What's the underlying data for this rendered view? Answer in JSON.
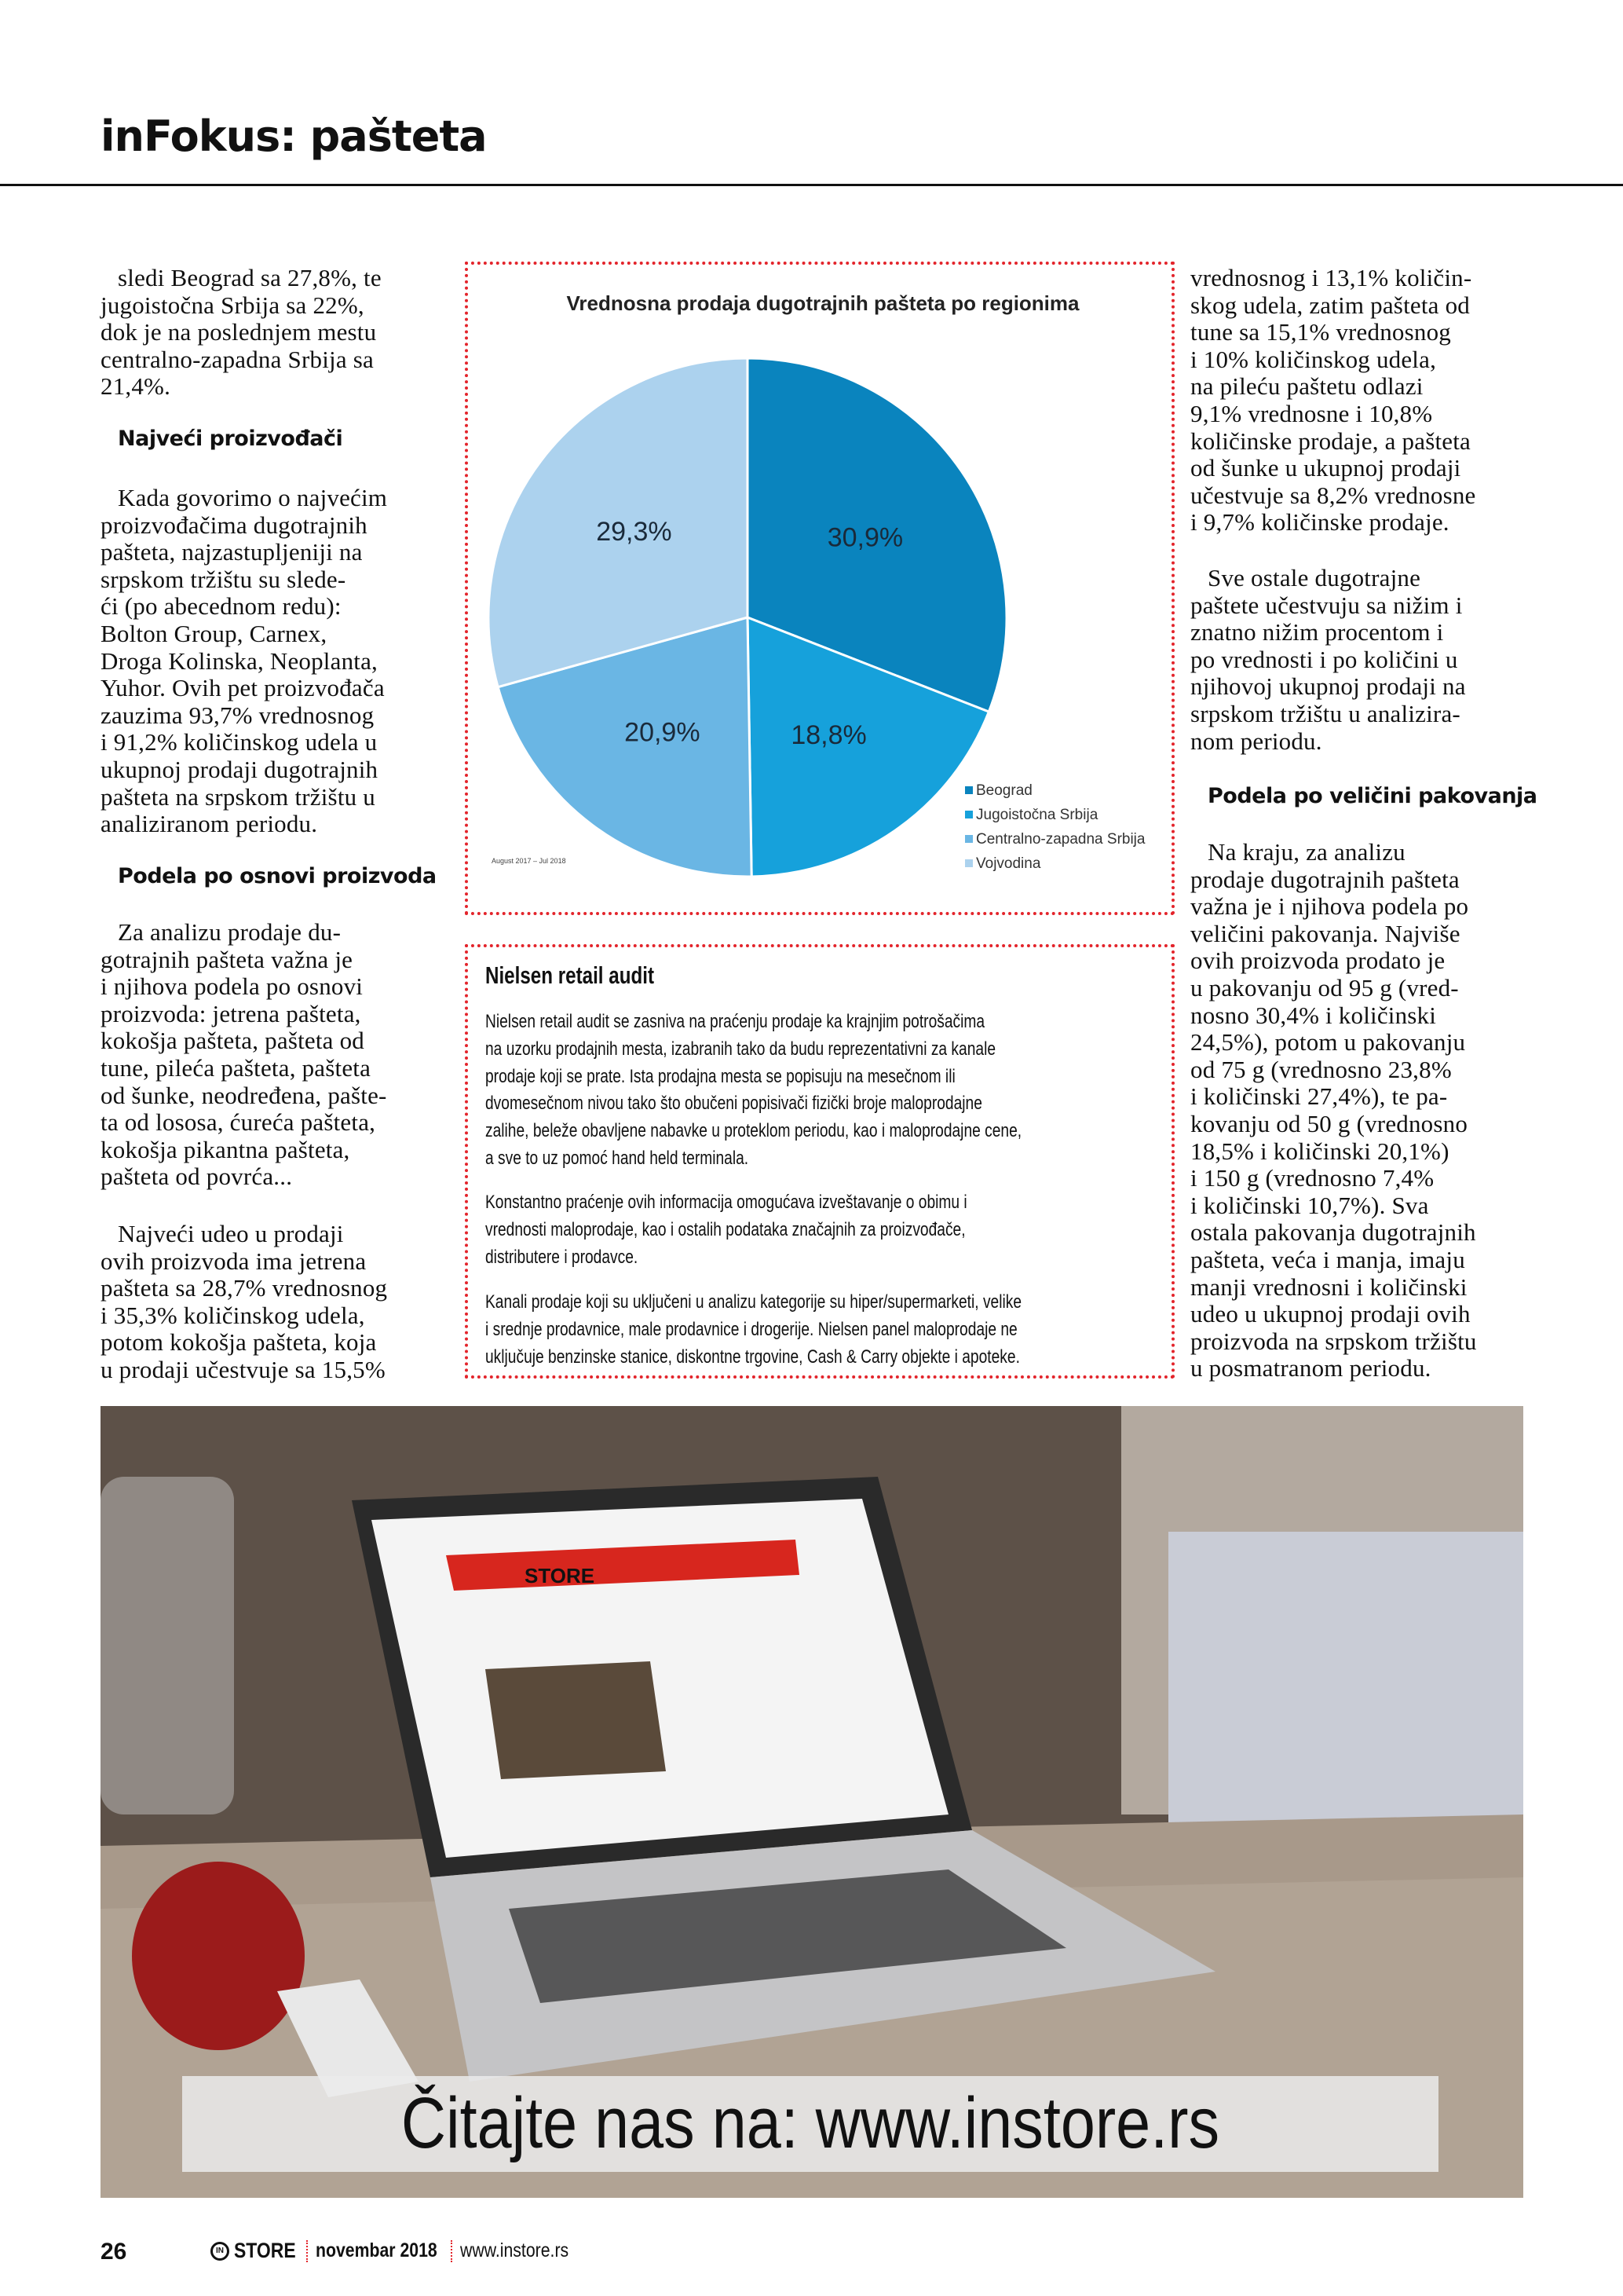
{
  "header": {
    "title": "inFokus: pašteta"
  },
  "left_column": {
    "blocks": [
      {
        "type": "p",
        "lines": [
          "sledi Beograd sa 27,8%, te",
          "jugoistočna Srbija sa 22%,",
          "dok je na poslednjem mestu",
          "centralno-zapadna Srbija sa",
          "21,4%."
        ]
      },
      {
        "type": "h",
        "text": "Najveći proizvođači"
      },
      {
        "type": "p",
        "lines": [
          "Kada govorimo o najvećim",
          "proizvođačima dugotrajnih",
          "pašteta, najzastupljeniji na",
          "srpskom tržištu su slede-",
          "ći (po abecednom redu):",
          "Bolton Group, Carnex,",
          "Droga Kolinska, Neoplanta,",
          "Yuhor. Ovih pet proizvođača",
          "zauzima 93,7% vrednosnog",
          "i 91,2% količinskog udela u",
          "ukupnoj prodaji dugotrajnih",
          "pašteta na srpskom tržištu u",
          "analiziranom periodu."
        ]
      },
      {
        "type": "h",
        "text": "Podela po osnovi proizvoda"
      },
      {
        "type": "p",
        "lines": [
          "Za analizu prodaje du-",
          "gotrajnih pašteta važna je",
          "i njihova podela po osnovi",
          "proizvoda: jetrena pašteta,",
          "kokošja pašteta, pašteta od",
          "tune, pileća pašteta, pašteta",
          "od šunke, neodređena, pašte-",
          "ta od lososa, ćureća pašteta,",
          "kokošja pikantna pašteta,",
          "pašteta od povrća..."
        ]
      },
      {
        "type": "p",
        "lines": [
          "Najveći udeo u prodaji",
          "ovih proizvoda ima jetrena",
          "pašteta sa 28,7% vrednosnog",
          "i 35,3% količinskog udela,",
          "potom kokošja pašteta, koja",
          "u prodaji učestvuje sa 15,5%"
        ]
      }
    ]
  },
  "right_column": {
    "blocks": [
      {
        "type": "p",
        "first_indent": false,
        "lines": [
          "vrednosnog i 13,1% količin-",
          "skog udela, zatim pašteta od",
          "tune sa 15,1% vrednosnog",
          "i 10% količinskog udela,",
          "na pileću paštetu odlazi",
          "9,1% vrednosne i 10,8%",
          "količinske prodaje, a pašteta",
          "od šunke u ukupnoj prodaji",
          "učestvuje sa 8,2% vrednosne",
          "i 9,7% količinske prodaje."
        ]
      },
      {
        "type": "p",
        "lines": [
          "Sve ostale dugotrajne",
          "paštete učestvuju sa nižim i",
          "znatno nižim procentom i",
          "po vrednosti i po količini u",
          "njihovoj ukupnoj prodaji na",
          "srpskom tržištu u analizira-",
          "nom periodu."
        ]
      },
      {
        "type": "h",
        "text": "Podela po veličini pakovanja"
      },
      {
        "type": "p",
        "lines": [
          "Na kraju, za analizu",
          "prodaje dugotrajnih pašteta",
          "važna je i njihova podela po",
          "veličini pakovanja. Najviše",
          "ovih proizvoda prodato je",
          "u pakovanju od 95 g (vred-",
          "nosno 30,4% i količinski",
          "24,5%), potom u pakovanju",
          "od 75 g (vrednosno 23,8%",
          "i količinski 27,4%), te pa-",
          "kovanju od 50 g (vrednosno",
          "18,5% i količinski 20,1%)",
          "i 150 g (vrednosno 7,4%",
          "i količinski 10,7%). Sva",
          "ostala pakovanja dugotrajnih",
          "pašteta, veća i manja, imaju",
          "manji vrednosni i količinski",
          "udeo u ukupnoj prodaji ovih",
          "proizvoda na srpskom tržištu",
          "u posmatranom periodu."
        ]
      }
    ]
  },
  "chart_data": {
    "type": "pie",
    "title": "Vrednosna prodaja dugotrajnih pašteta po regionima",
    "footnote": "August 2017 – Jul 2018",
    "legend_position": "bottom-right",
    "slices": [
      {
        "name": "Beograd",
        "value": 30.9,
        "label": "30,9%",
        "color": "#0a84be"
      },
      {
        "name": "Jugoistočna Srbija",
        "value": 18.8,
        "label": "18,8%",
        "color": "#16a1db"
      },
      {
        "name": "Centralno-zapadna Srbija",
        "value": 20.9,
        "label": "20,9%",
        "color": "#6ab6e4"
      },
      {
        "name": "Vojvodina",
        "value": 29.3,
        "label": "29,3%",
        "color": "#acd2ee"
      }
    ]
  },
  "nielsen_box": {
    "title": "Nielsen retail audit",
    "paragraphs": [
      [
        "Nielsen retail audit se zasniva na praćenju prodaje ka krajnjim potrošačima",
        "na uzorku prodajnih mesta, izabranih tako da budu reprezentativni za kanale",
        "prodaje koji se prate. Ista prodajna mesta se popisuju na mesečnom ili",
        "dvomesečnom nivou tako što obučeni popisivači fizički broje maloprodajne",
        "zalihe, beleže obavljene nabavke u proteklom periodu, kao i maloprodajne cene,",
        "a sve to uz pomoć hand held terminala."
      ],
      [
        "Konstantno praćenje ovih informacija omogućava izveštavanje o obimu i",
        "vrednosti maloprodaje, kao i ostalih podataka značajnih za proizvođače,",
        "distributere i prodavce."
      ],
      [
        "Kanali prodaje koji su uključeni u analizu kategorije su hiper/supermarketi, velike",
        "i srednje prodavnice, male prodavnice i drogerije. Nielsen panel maloprodaje ne",
        "uključuje benzinske stanice, diskontne trgovine, Cash & Carry objekte i apoteke."
      ]
    ]
  },
  "photo": {
    "laptop_screen_logo": "STORE",
    "banner_text": "Čitajte nas na: www.instore.rs"
  },
  "footer": {
    "page_number": "26",
    "brand": "STORE",
    "issue": "novembar 2018",
    "url": "www.instore.rs"
  }
}
